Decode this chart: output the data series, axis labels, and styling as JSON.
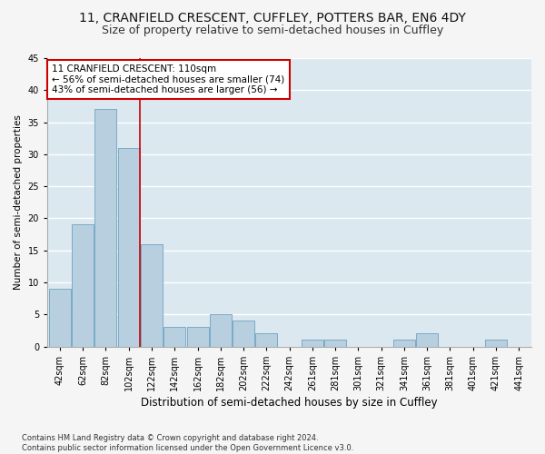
{
  "title1": "11, CRANFIELD CRESCENT, CUFFLEY, POTTERS BAR, EN6 4DY",
  "title2": "Size of property relative to semi-detached houses in Cuffley",
  "xlabel": "Distribution of semi-detached houses by size in Cuffley",
  "ylabel": "Number of semi-detached properties",
  "footnote": "Contains HM Land Registry data © Crown copyright and database right 2024.\nContains public sector information licensed under the Open Government Licence v3.0.",
  "categories": [
    "42sqm",
    "62sqm",
    "82sqm",
    "102sqm",
    "122sqm",
    "142sqm",
    "162sqm",
    "182sqm",
    "202sqm",
    "222sqm",
    "242sqm",
    "261sqm",
    "281sqm",
    "301sqm",
    "321sqm",
    "341sqm",
    "361sqm",
    "381sqm",
    "401sqm",
    "421sqm",
    "441sqm"
  ],
  "values": [
    9,
    19,
    37,
    31,
    16,
    3,
    3,
    5,
    4,
    2,
    0,
    1,
    1,
    0,
    0,
    1,
    2,
    0,
    0,
    1,
    0
  ],
  "bar_color": "#b8cfe0",
  "bar_edge_color": "#7aaac8",
  "annotation_line1": "11 CRANFIELD CRESCENT: 110sqm",
  "annotation_line2": "← 56% of semi-detached houses are smaller (74)",
  "annotation_line3": "43% of semi-detached houses are larger (56) →",
  "annotation_box_color": "#ffffff",
  "annotation_box_edge_color": "#cc0000",
  "property_line_color": "#cc0000",
  "property_line_x": 3.5,
  "ylim": [
    0,
    45
  ],
  "yticks": [
    0,
    5,
    10,
    15,
    20,
    25,
    30,
    35,
    40,
    45
  ],
  "plot_bg_color": "#dce8f0",
  "fig_bg_color": "#f5f5f5",
  "grid_color": "#ffffff",
  "title1_fontsize": 10,
  "title2_fontsize": 9,
  "xlabel_fontsize": 8.5,
  "ylabel_fontsize": 7.5,
  "tick_fontsize": 7,
  "annotation_fontsize": 7.5,
  "footnote_fontsize": 6
}
